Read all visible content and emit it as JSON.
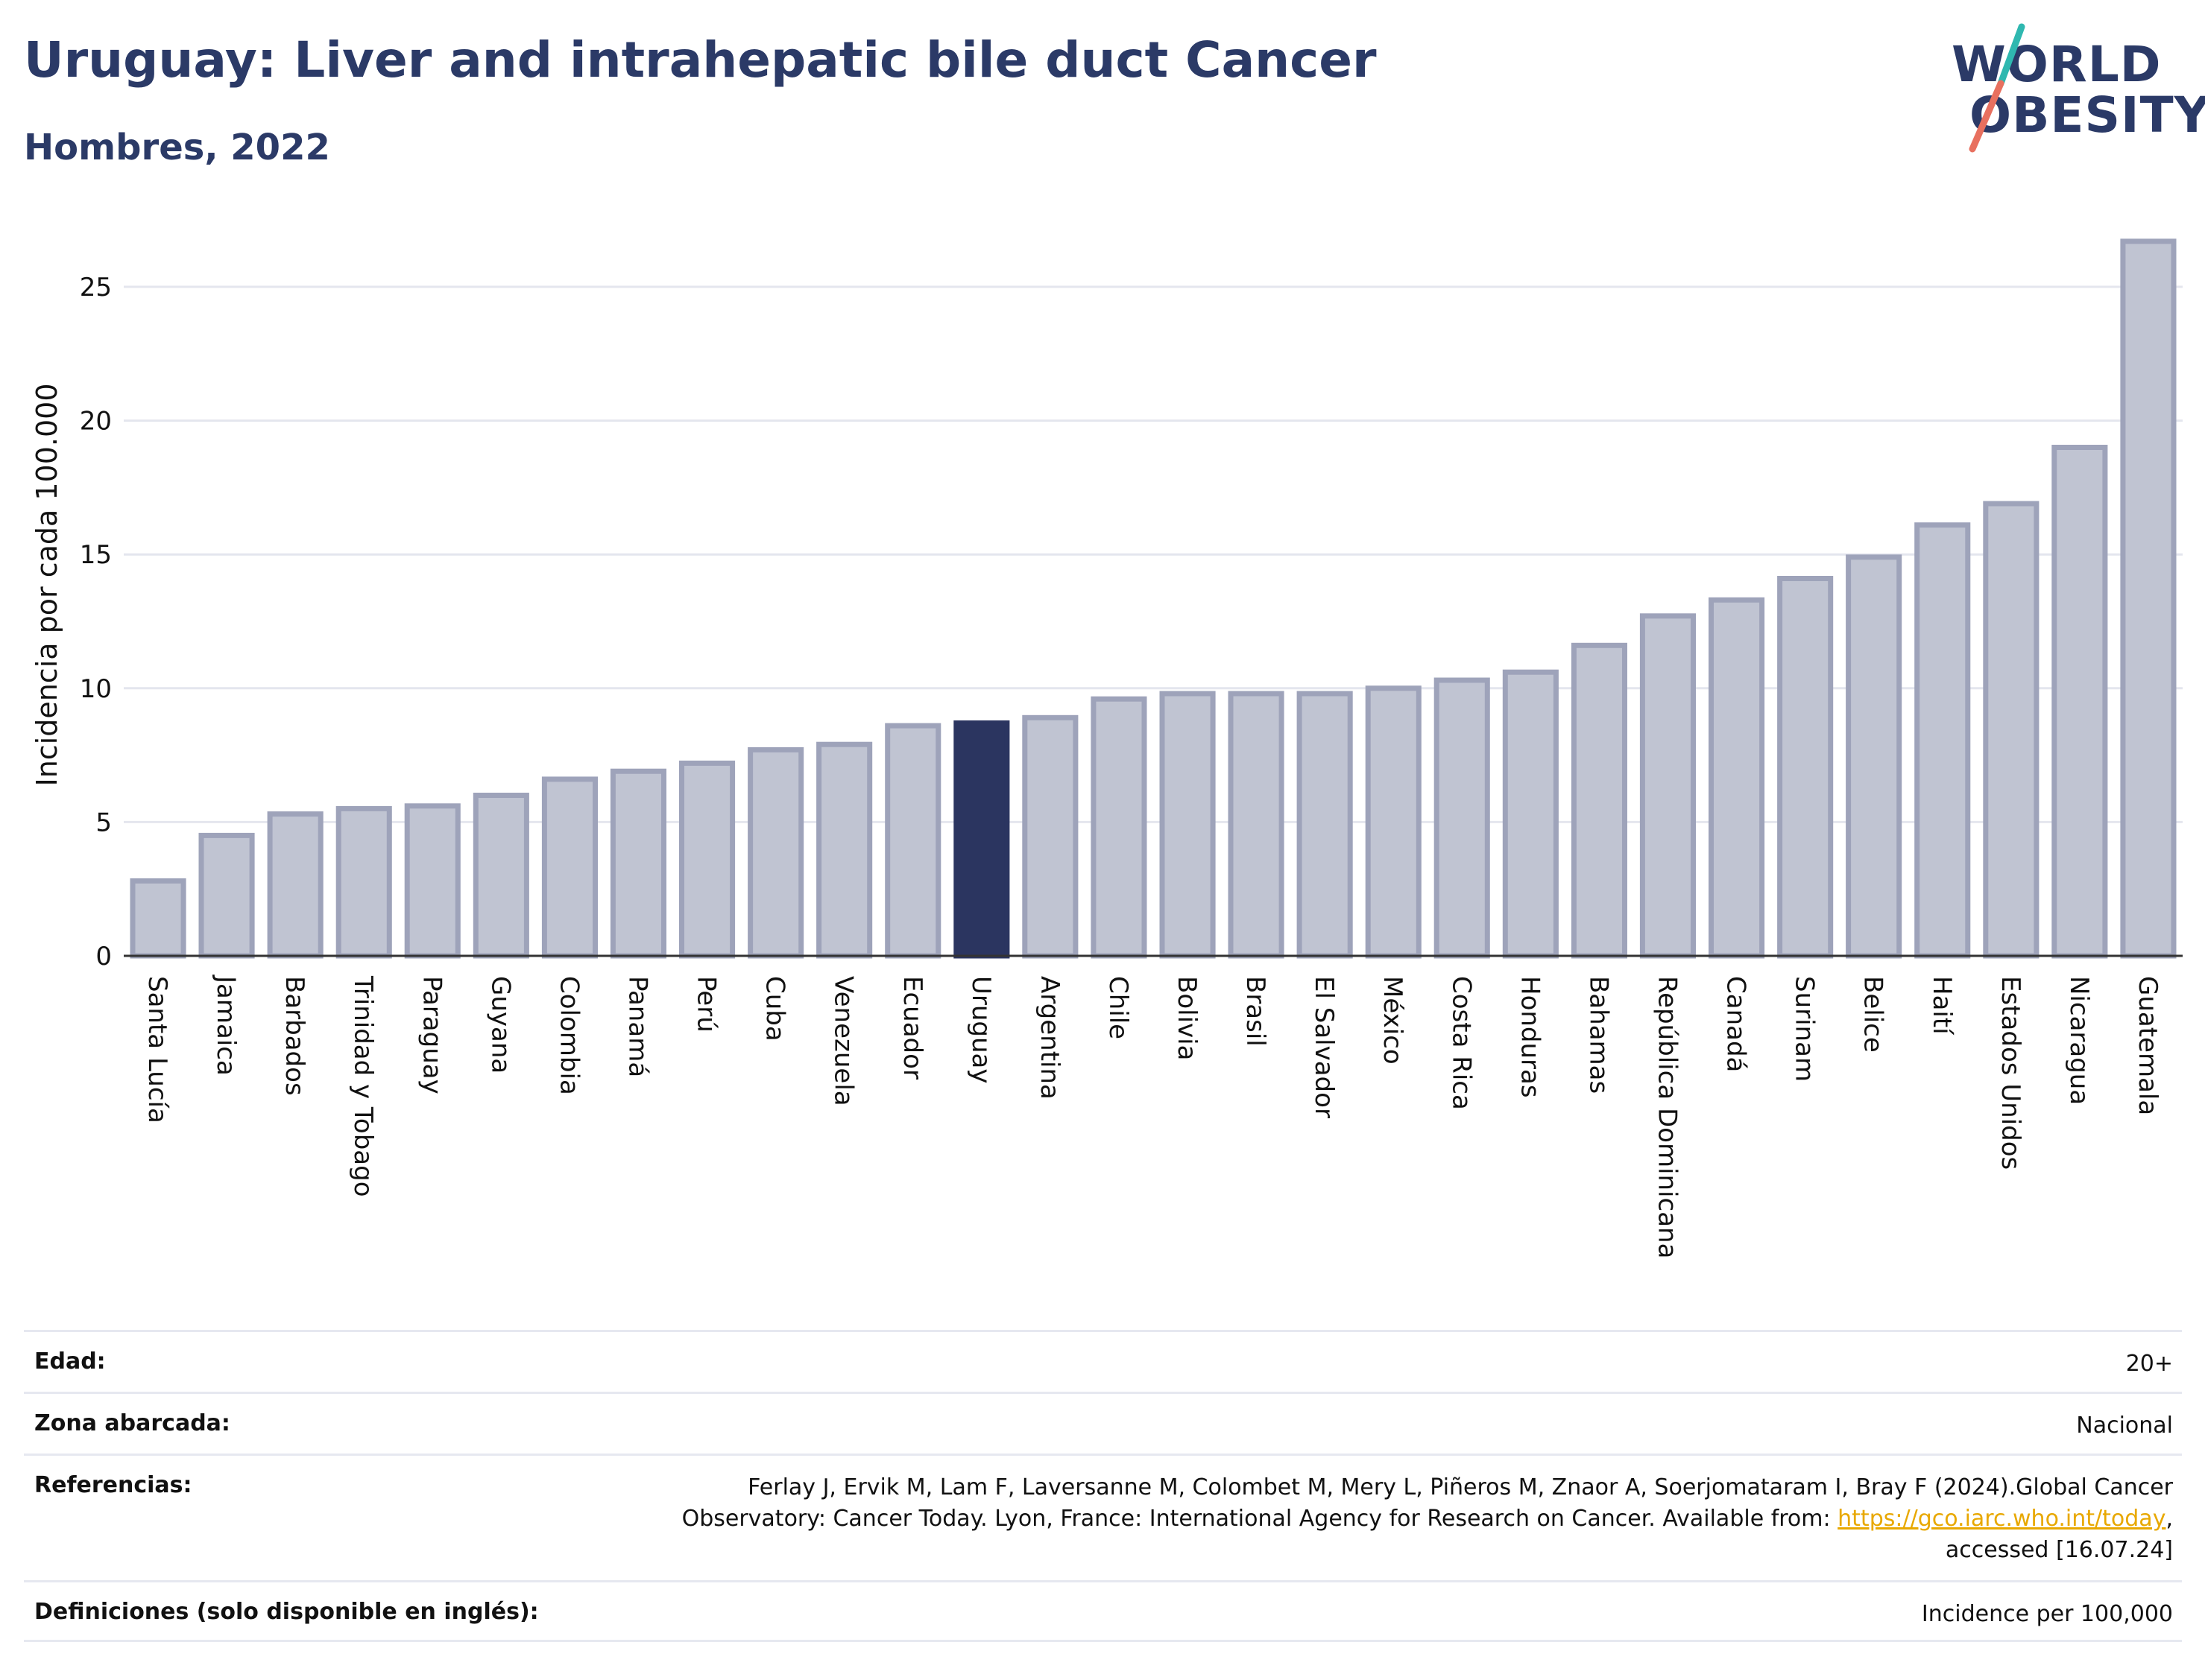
{
  "header": {
    "title": "Uruguay: Liver and intrahepatic bile duct Cancer",
    "subtitle": "Hombres, 2022"
  },
  "logo": {
    "line1": "WORLD",
    "line2": "OBESITY",
    "accent_colors": [
      "#2fb8b0",
      "#e8705f"
    ]
  },
  "chart_data": {
    "type": "bar",
    "ylabel": "Incidencia por cada 100.000",
    "xlabel": "",
    "ylim": [
      0,
      27
    ],
    "yticks": [
      0,
      5,
      10,
      15,
      20,
      25
    ],
    "grid": true,
    "highlight": "Uruguay",
    "colors": {
      "bar": "#c0c4d2",
      "bar_border": "#9ea3ba",
      "highlight": "#2b3560"
    },
    "categories": [
      "Santa Lucía",
      "Jamaica",
      "Barbados",
      "Trinidad y Tobago",
      "Paraguay",
      "Guyana",
      "Colombia",
      "Panamá",
      "Perú",
      "Cuba",
      "Venezuela",
      "Ecuador",
      "Uruguay",
      "Argentina",
      "Chile",
      "Bolivia",
      "Brasil",
      "El Salvador",
      "México",
      "Costa Rica",
      "Honduras",
      "Bahamas",
      "República Dominicana",
      "Canadá",
      "Surinam",
      "Belice",
      "Haití",
      "Estados Unidos",
      "Nicaragua",
      "Guatemala"
    ],
    "values": [
      2.8,
      4.5,
      5.3,
      5.5,
      5.6,
      6.0,
      6.6,
      6.9,
      7.2,
      7.7,
      7.9,
      8.6,
      8.7,
      8.9,
      9.6,
      9.8,
      9.8,
      9.8,
      10.0,
      10.3,
      10.6,
      11.6,
      12.7,
      13.3,
      14.1,
      14.9,
      16.1,
      16.9,
      19.0,
      26.7
    ]
  },
  "details": {
    "age_label": "Edad:",
    "age_value": "20+",
    "zone_label": "Zona abarcada:",
    "zone_value": "Nacional",
    "refs_label": "Referencias:",
    "refs_line1": "Ferlay J, Ervik M, Lam F, Laversanne M, Colombet M, Mery L, Piñeros M, Znaor A, Soerjomataram I, Bray F (2024).Global Cancer",
    "refs_line2": "Observatory: Cancer Today. Lyon, France: International Agency for Research on Cancer. Available from: ",
    "refs_link": "https://gco.iarc.who.int/today",
    "refs_line2_end": ",",
    "refs_line3": "accessed [16.07.24]",
    "defs_label": "Definiciones (solo disponible en inglés):",
    "defs_value": "Incidence per 100,000"
  }
}
